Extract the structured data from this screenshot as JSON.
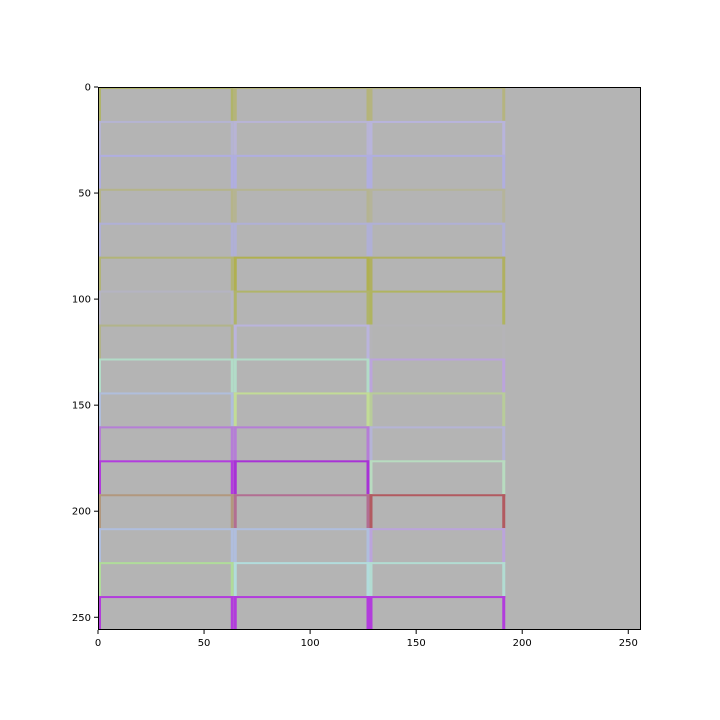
{
  "chart_data": {
    "type": "heatmap",
    "title": "",
    "xlabel": "",
    "ylabel": "",
    "xlim": [
      0,
      256
    ],
    "ylim": [
      256,
      0
    ],
    "grid": false,
    "background_color": "#b4b4b4",
    "x_ticks": [
      "0",
      "50",
      "100",
      "150",
      "200",
      "250"
    ],
    "y_ticks": [
      "0",
      "50",
      "100",
      "150",
      "200",
      "250"
    ],
    "x_tick_values": [
      0,
      50,
      100,
      150,
      200,
      250
    ],
    "y_tick_values": [
      0,
      50,
      100,
      150,
      200,
      250
    ],
    "cell_width": 64,
    "cell_height": 16,
    "rows": [
      {
        "y": 0,
        "colors": [
          "#b0b46a",
          "#b5b47a",
          "#b5b480"
        ]
      },
      {
        "y": 16,
        "colors": [
          "#b5b4d2",
          "#b8b4d6",
          "#b8b4dc"
        ]
      },
      {
        "y": 32,
        "colors": [
          "#b0aee0",
          "#b0aee0",
          "#b0aee0"
        ]
      },
      {
        "y": 48,
        "colors": [
          "#b5b48a",
          "#b5b492",
          "#b5b49a"
        ]
      },
      {
        "y": 64,
        "colors": [
          "#b0b0d6",
          "#b0b0d6",
          "#b0b0d6"
        ]
      },
      {
        "y": 80,
        "colors": [
          "#b2b478",
          "#b0b050",
          "#b0b060"
        ]
      },
      {
        "y": 96,
        "colors": [
          "#b5b4c2",
          "#b0b46a",
          "#b0b460"
        ]
      },
      {
        "y": 112,
        "colors": [
          "#b2b48a",
          "#bab4dc",
          "#b5b4b8"
        ]
      },
      {
        "y": 128,
        "colors": [
          "#b2dcc8",
          "#b2dcc8",
          "#bba4dc"
        ]
      },
      {
        "y": 144,
        "colors": [
          "#b0bedc",
          "#c2dc96",
          "#b8cc9a"
        ]
      },
      {
        "y": 160,
        "colors": [
          "#b57ed6",
          "#b57ed6",
          "#b5b4d6"
        ]
      },
      {
        "y": 176,
        "colors": [
          "#b23cde",
          "#a832d6",
          "#b8dcc0"
        ]
      },
      {
        "y": 192,
        "colors": [
          "#b2987e",
          "#b26e92",
          "#b25a60"
        ]
      },
      {
        "y": 208,
        "colors": [
          "#b0bede",
          "#b0bede",
          "#bba4dc"
        ]
      },
      {
        "y": 224,
        "colors": [
          "#b0dc9a",
          "#b2dcdc",
          "#b2dcd2"
        ]
      },
      {
        "y": 240,
        "colors": [
          "#b23cdc",
          "#b23cdc",
          "#b23cdc"
        ]
      }
    ]
  }
}
